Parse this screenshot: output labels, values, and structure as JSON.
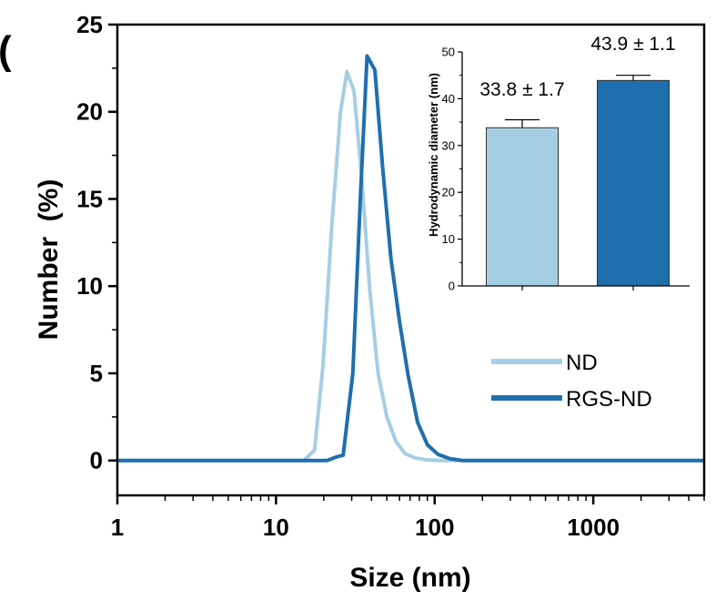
{
  "chart_data": [
    {
      "type": "line",
      "title": "",
      "xlabel": "Size (nm)",
      "ylabel": "Number  (%)",
      "xscale": "log",
      "xlim": [
        1,
        5000
      ],
      "ylim": [
        -2,
        25
      ],
      "x_ticks": [
        1,
        10,
        100,
        1000
      ],
      "x_tick_labels": [
        "1",
        "10",
        "100",
        "1000"
      ],
      "y_ticks": [
        0,
        5,
        10,
        15,
        20,
        25
      ],
      "y_tick_labels": [
        "0",
        "5",
        "10",
        "15",
        "20",
        "25"
      ],
      "legend_position": "bottom-right",
      "series": [
        {
          "name": "ND",
          "color": "#a6cee3",
          "points": [
            [
              1,
              0
            ],
            [
              15,
              0
            ],
            [
              17.5,
              0.6
            ],
            [
              19.8,
              5.5
            ],
            [
              22.5,
              13.5
            ],
            [
              25.5,
              20
            ],
            [
              28,
              22.3
            ],
            [
              31,
              21.2
            ],
            [
              34.5,
              16.5
            ],
            [
              39,
              9.8
            ],
            [
              44,
              5
            ],
            [
              50,
              2.5
            ],
            [
              57,
              1.1
            ],
            [
              65,
              0.4
            ],
            [
              75,
              0.15
            ],
            [
              90,
              0.03
            ],
            [
              110,
              0
            ],
            [
              5000,
              0
            ]
          ]
        },
        {
          "name": "RGS-ND",
          "color": "#1f6fad",
          "points": [
            [
              1,
              0
            ],
            [
              21,
              0
            ],
            [
              24,
              0.2
            ],
            [
              26.5,
              0.3
            ],
            [
              30.5,
              5
            ],
            [
              34,
              15
            ],
            [
              37.5,
              23.2
            ],
            [
              42,
              22.4
            ],
            [
              47,
              16.8
            ],
            [
              53,
              11.6
            ],
            [
              60,
              8
            ],
            [
              68,
              4.9
            ],
            [
              78,
              2.2
            ],
            [
              90,
              0.9
            ],
            [
              105,
              0.35
            ],
            [
              125,
              0.1
            ],
            [
              150,
              0
            ],
            [
              5000,
              0
            ]
          ]
        }
      ]
    },
    {
      "type": "bar",
      "title": "",
      "ylabel": "Hydrodynamic diameter (nm)",
      "ylim": [
        0,
        50
      ],
      "y_ticks": [
        0,
        10,
        20,
        30,
        40,
        50
      ],
      "y_tick_labels": [
        "0",
        "10",
        "20",
        "30",
        "40",
        "50"
      ],
      "categories": [
        "ND",
        "RGS-ND"
      ],
      "values": [
        33.8,
        43.9
      ],
      "errors": [
        1.7,
        1.1
      ],
      "bar_labels": [
        "33.8 ± 1.7",
        "43.9 ± 1.1"
      ],
      "colors": [
        "#a6cee3",
        "#1f6fad"
      ]
    }
  ],
  "panel_label": "("
}
